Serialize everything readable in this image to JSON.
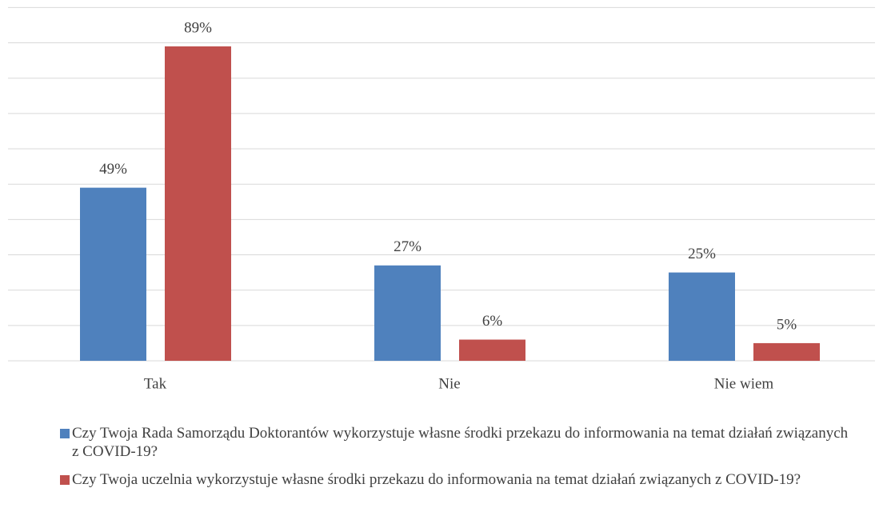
{
  "chart_data": {
    "type": "bar",
    "categories": [
      "Tak",
      "Nie",
      "Nie wiem"
    ],
    "series": [
      {
        "name": "Czy Twoja Rada Samorządu Doktorantów wykorzystuje własne środki przekazu do informowania na temat działań związanych z COVID-19?",
        "color": "#4f81bd",
        "values": [
          49,
          27,
          25
        ],
        "value_labels": [
          "49%",
          "27%",
          "25%"
        ]
      },
      {
        "name": "Czy Twoja uczelnia wykorzystuje własne środki przekazu do informowania na temat działań związanych z COVID-19?",
        "color": "#c0504d",
        "values": [
          89,
          6,
          5
        ],
        "value_labels": [
          "89%",
          "6%",
          "5%"
        ]
      }
    ],
    "ylim": [
      0,
      100
    ],
    "yticks": [
      0,
      10,
      20,
      30,
      40,
      50,
      60,
      70,
      80,
      90,
      100
    ],
    "grid": true,
    "legend": "bottom"
  }
}
